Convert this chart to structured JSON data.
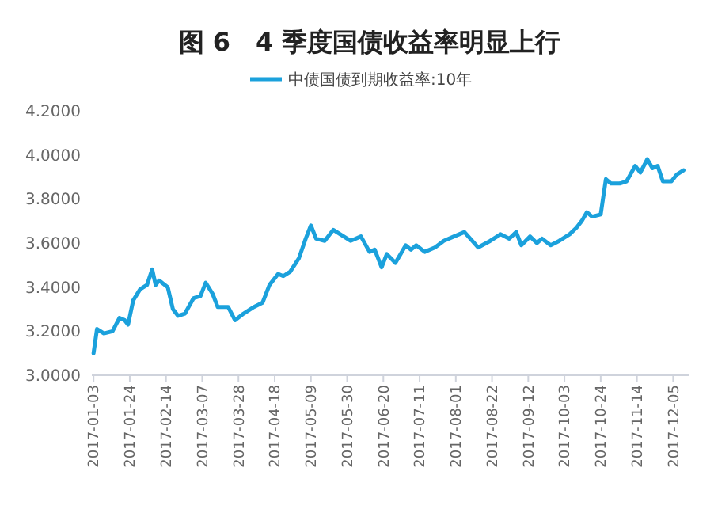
{
  "chart_data": {
    "type": "line",
    "title": "图 6　4 季度国债收益率明显上行",
    "x": [
      "2017-01-03",
      "2017-01-05",
      "2017-01-09",
      "2017-01-14",
      "2017-01-18",
      "2017-01-21",
      "2017-01-23",
      "2017-01-26",
      "2017-01-30",
      "2017-02-03",
      "2017-02-06",
      "2017-02-08",
      "2017-02-10",
      "2017-02-15",
      "2017-02-18",
      "2017-02-21",
      "2017-02-25",
      "2017-03-02",
      "2017-03-06",
      "2017-03-09",
      "2017-03-13",
      "2017-03-16",
      "2017-03-22",
      "2017-03-26",
      "2017-03-31",
      "2017-04-06",
      "2017-04-11",
      "2017-04-15",
      "2017-04-20",
      "2017-04-23",
      "2017-04-27",
      "2017-05-02",
      "2017-05-06",
      "2017-05-09",
      "2017-05-12",
      "2017-05-17",
      "2017-05-22",
      "2017-05-26",
      "2017-06-01",
      "2017-06-07",
      "2017-06-12",
      "2017-06-15",
      "2017-06-19",
      "2017-06-22",
      "2017-06-27",
      "2017-07-03",
      "2017-07-06",
      "2017-07-09",
      "2017-07-14",
      "2017-07-20",
      "2017-07-25",
      "2017-07-31",
      "2017-08-06",
      "2017-08-14",
      "2017-08-21",
      "2017-08-27",
      "2017-09-01",
      "2017-09-05",
      "2017-09-08",
      "2017-09-13",
      "2017-09-17",
      "2017-09-20",
      "2017-09-25",
      "2017-09-30",
      "2017-10-06",
      "2017-10-10",
      "2017-10-13",
      "2017-10-16",
      "2017-10-19",
      "2017-10-24",
      "2017-10-27",
      "2017-10-30",
      "2017-11-04",
      "2017-11-08",
      "2017-11-13",
      "2017-11-16",
      "2017-11-20",
      "2017-11-23",
      "2017-11-26",
      "2017-11-29",
      "2017-12-04",
      "2017-12-07",
      "2017-12-11"
    ],
    "series": [
      {
        "name": "中债国债到期收益率:10年",
        "color": "#1ba1dc",
        "values": [
          3.1,
          3.21,
          3.19,
          3.2,
          3.26,
          3.25,
          3.23,
          3.34,
          3.39,
          3.41,
          3.48,
          3.41,
          3.43,
          3.4,
          3.3,
          3.27,
          3.28,
          3.35,
          3.36,
          3.42,
          3.37,
          3.31,
          3.31,
          3.25,
          3.28,
          3.31,
          3.33,
          3.41,
          3.46,
          3.45,
          3.47,
          3.53,
          3.62,
          3.68,
          3.62,
          3.61,
          3.66,
          3.64,
          3.61,
          3.63,
          3.56,
          3.57,
          3.49,
          3.55,
          3.51,
          3.59,
          3.57,
          3.59,
          3.56,
          3.58,
          3.61,
          3.63,
          3.65,
          3.58,
          3.61,
          3.64,
          3.62,
          3.65,
          3.59,
          3.63,
          3.6,
          3.62,
          3.59,
          3.61,
          3.64,
          3.67,
          3.7,
          3.74,
          3.72,
          3.73,
          3.89,
          3.87,
          3.87,
          3.88,
          3.95,
          3.92,
          3.98,
          3.94,
          3.95,
          3.88,
          3.88,
          3.91,
          3.93
        ]
      }
    ],
    "xlim": [
      "2017-01-02",
      "2017-12-14"
    ],
    "xticks": [
      "2017-01-03",
      "2017-01-24",
      "2017-02-14",
      "2017-03-07",
      "2017-03-28",
      "2017-04-18",
      "2017-05-09",
      "2017-05-30",
      "2017-06-20",
      "2017-07-11",
      "2017-08-01",
      "2017-08-22",
      "2017-09-12",
      "2017-10-03",
      "2017-10-24",
      "2017-11-14",
      "2017-12-05"
    ],
    "ylim": [
      3,
      4.2
    ],
    "yticks": [
      {
        "value": 3,
        "label": "3.0000"
      },
      {
        "value": 3.2,
        "label": "3.2000"
      },
      {
        "value": 3.4,
        "label": "3.4000"
      },
      {
        "value": 3.6,
        "label": "3.6000"
      },
      {
        "value": 3.8,
        "label": "3.8000"
      },
      {
        "value": 4,
        "label": "4.0000"
      },
      {
        "value": 4.2,
        "label": "4.2000"
      }
    ],
    "grid": false,
    "legend": "top",
    "marker": "none",
    "line_style": "solid"
  }
}
